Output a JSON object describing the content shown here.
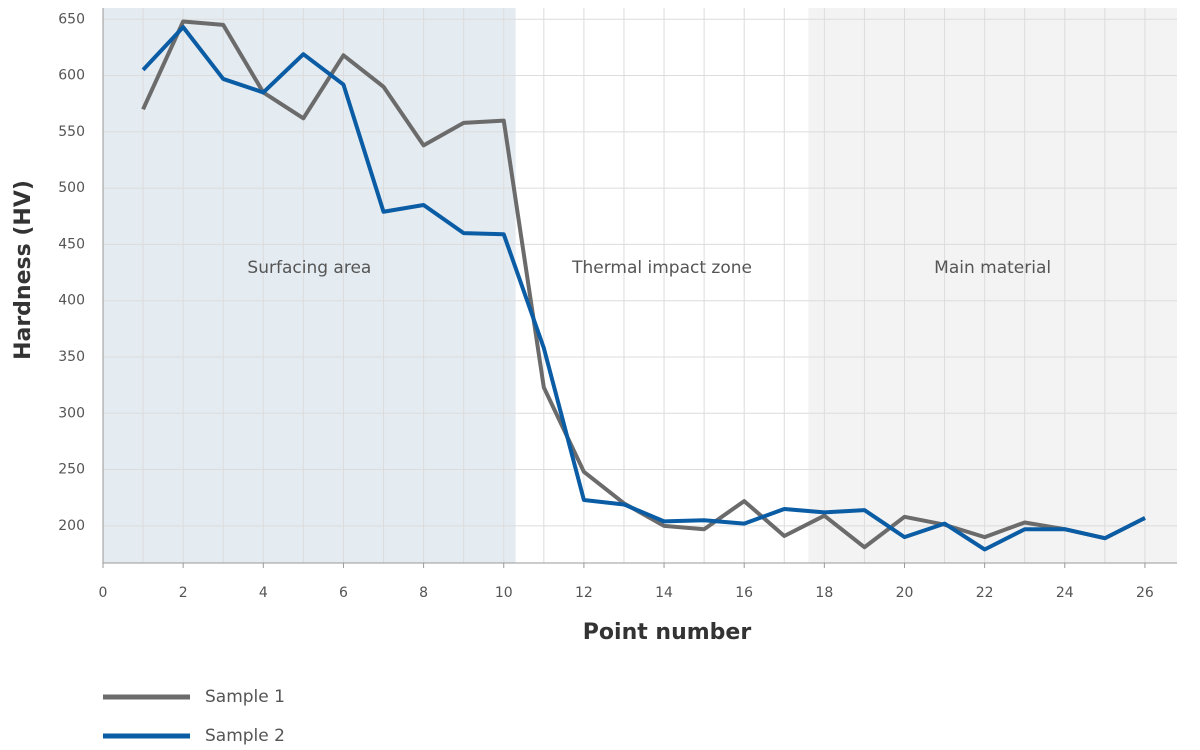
{
  "chart_data": {
    "type": "line",
    "x_label": "Point number",
    "y_label": "Hardness (HV)",
    "x": [
      1,
      2,
      3,
      4,
      5,
      6,
      7,
      8,
      9,
      10,
      11,
      12,
      13,
      14,
      15,
      16,
      17,
      18,
      19,
      20,
      21,
      22,
      23,
      24,
      25,
      26
    ],
    "series": [
      {
        "name": "Sample 1",
        "color": "#6b6b6b",
        "values": [
          570,
          648,
          645,
          585,
          562,
          618,
          590,
          538,
          558,
          560,
          323,
          248,
          220,
          200,
          197,
          222,
          191,
          209,
          181,
          208,
          201,
          190,
          203,
          197,
          189,
          207
        ]
      },
      {
        "name": "Sample 2",
        "color": "#0a5ca4",
        "values": [
          605,
          643,
          597,
          585,
          619,
          592,
          479,
          485,
          460,
          459,
          358,
          223,
          219,
          204,
          205,
          202,
          215,
          212,
          214,
          190,
          202,
          179,
          197,
          197,
          189,
          207
        ]
      }
    ],
    "regions": [
      {
        "label": "Surfacing area",
        "from": 0,
        "to": 10.3,
        "color": "#e4ebf1"
      },
      {
        "label": "Thermal impact zone",
        "from": 10.3,
        "to": 17.6,
        "color": "#ffffff"
      },
      {
        "label": "Main material",
        "from": 17.6,
        "to": 26.8,
        "color": "#f3f3f3"
      }
    ],
    "xlim": [
      0,
      26.8
    ],
    "ylim": [
      167,
      660
    ],
    "xticks": [
      0,
      2,
      4,
      6,
      8,
      10,
      12,
      14,
      16,
      18,
      20,
      22,
      24,
      26
    ],
    "yticks": [
      200,
      250,
      300,
      350,
      400,
      450,
      500,
      550,
      600,
      650
    ],
    "grid": true,
    "legend": "bottom-left"
  }
}
